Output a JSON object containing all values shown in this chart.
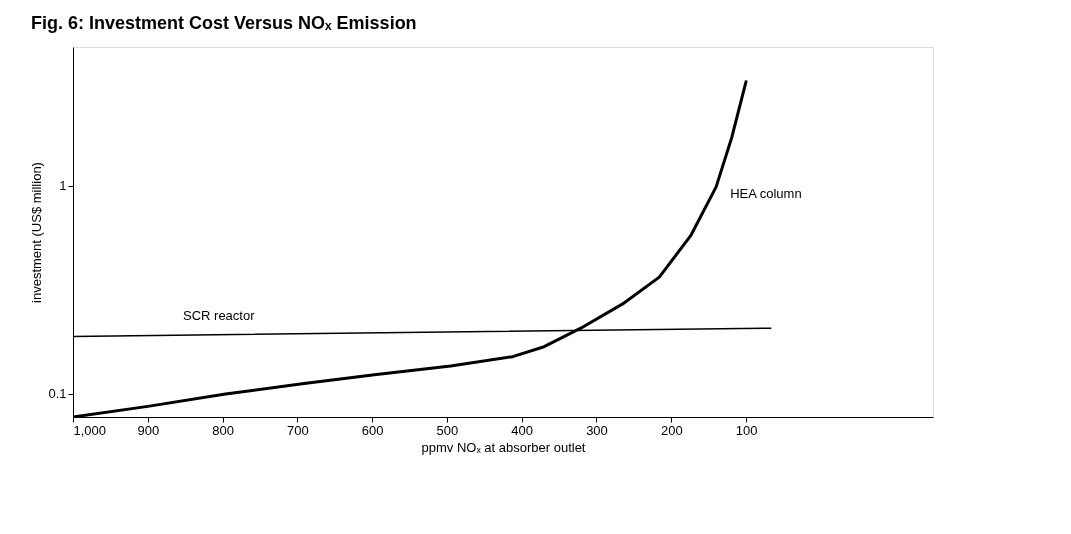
{
  "chart_data": {
    "type": "line",
    "title": "Fig. 6: Investment Cost Versus NOₓ Emission",
    "xlabel": "ppmv NOₓ at absorber outlet",
    "ylabel": "investment (US$ million)",
    "xlim": [
      1000,
      -150
    ],
    "xticks": [
      {
        "value": 1000,
        "label": "1,000"
      },
      900,
      800,
      700,
      600,
      500,
      400,
      300,
      200,
      100
    ],
    "ylim": [
      0,
      1.6
    ],
    "yticks": [
      0.1,
      1
    ],
    "grid": false,
    "marker": "none",
    "line_style": "solid",
    "series": [
      {
        "name": "HEA column",
        "color": "#000000",
        "x": [
          1000,
          900,
          796,
          691,
          597,
          495,
          412,
          370,
          321,
          265,
          216,
          174,
          140,
          119,
          100
        ],
        "values": [
          0,
          0.046,
          0.099,
          0.145,
          0.183,
          0.221,
          0.261,
          0.304,
          0.384,
          0.489,
          0.605,
          0.784,
          0.995,
          1.21,
          1.45
        ]
      },
      {
        "name": "SCR reactor",
        "color": "#000000",
        "x": [
          1000,
          67
        ],
        "values": [
          0.348,
          0.384
        ]
      }
    ]
  }
}
